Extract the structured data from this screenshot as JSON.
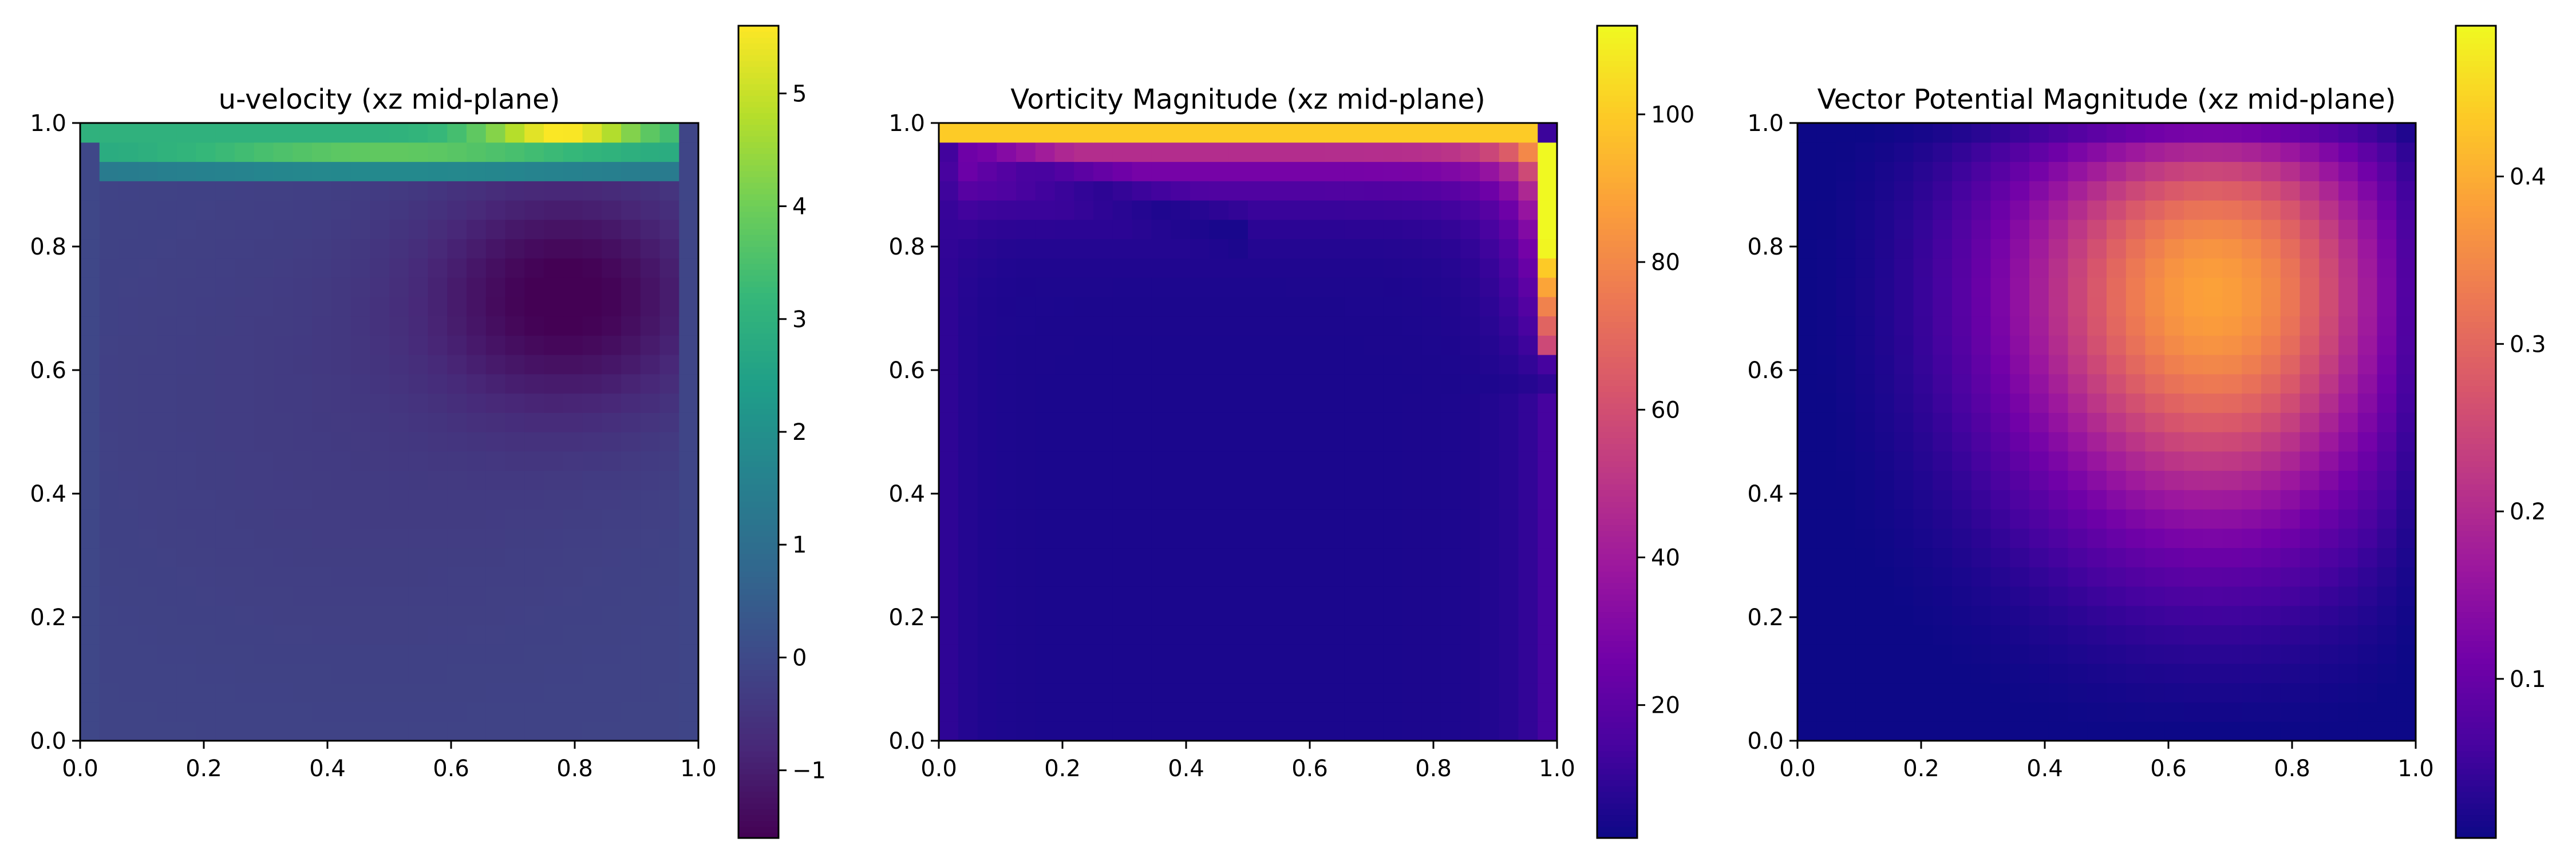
{
  "chart_data": [
    {
      "type": "heatmap",
      "title": "u-velocity (xz mid-plane)",
      "xlabel": "",
      "ylabel": "",
      "xlim": [
        0.0,
        1.0
      ],
      "ylim": [
        0.0,
        1.0
      ],
      "x_ticks": [
        "0.0",
        "0.2",
        "0.4",
        "0.6",
        "0.8",
        "1.0"
      ],
      "y_ticks": [
        "0.0",
        "0.2",
        "0.4",
        "0.6",
        "0.8",
        "1.0"
      ],
      "grid": [
        32,
        32
      ],
      "colormap": "viridis",
      "colorbar": {
        "range": [
          -1.6,
          5.6
        ],
        "ticks": [
          -1,
          0,
          1,
          2,
          3,
          4,
          5
        ],
        "labels": [
          "−1",
          "0",
          "1",
          "2",
          "3",
          "4",
          "5"
        ]
      },
      "field": {
        "description_values": "lid row peaks ~5.6 near x=0.8 (z=0.97); secondary band ~3 at z=0.94; broad negative vortex min ~-1.6 near (0.78, 0.72); lower region ~ -0.1"
      },
      "colors": {
        "low": "#440154",
        "mid": "#21918c",
        "high": "#fde725"
      }
    },
    {
      "type": "heatmap",
      "title": "Vorticity Magnitude (xz mid-plane)",
      "xlabel": "",
      "ylabel": "",
      "xlim": [
        0.0,
        1.0
      ],
      "ylim": [
        0.0,
        1.0
      ],
      "x_ticks": [
        "0.0",
        "0.2",
        "0.4",
        "0.6",
        "0.8",
        "1.0"
      ],
      "y_ticks": [
        "0.0",
        "0.2",
        "0.4",
        "0.6",
        "0.8",
        "1.0"
      ],
      "grid": [
        32,
        32
      ],
      "colormap": "plasma",
      "colorbar": {
        "range": [
          2,
          112
        ],
        "ticks": [
          20,
          40,
          60,
          80,
          100
        ],
        "labels": [
          "20",
          "40",
          "60",
          "80",
          "100"
        ]
      },
      "field": {
        "description_values": "top lid row ~100; right wall ~100 near top; near-wall band ~60; diagonal low-vorticity streak; interior ~5"
      },
      "colors": {
        "low": "#0d0887",
        "mid": "#cc4778",
        "high": "#f0f921"
      }
    },
    {
      "type": "heatmap",
      "title": "Vector Potential Magnitude (xz mid-plane)",
      "xlabel": "",
      "ylabel": "",
      "xlim": [
        0.0,
        1.0
      ],
      "ylim": [
        0.0,
        1.0
      ],
      "x_ticks": [
        "0.0",
        "0.2",
        "0.4",
        "0.6",
        "0.8",
        "1.0"
      ],
      "y_ticks": [
        "0.0",
        "0.2",
        "0.4",
        "0.6",
        "0.8",
        "1.0"
      ],
      "grid": [
        32,
        32
      ],
      "colormap": "plasma",
      "colorbar": {
        "range": [
          0.005,
          0.49
        ],
        "ticks": [
          0.1,
          0.2,
          0.3,
          0.4
        ],
        "labels": [
          "0.1",
          "0.2",
          "0.3",
          "0.4"
        ]
      },
      "field": {
        "description_values": "zero on walls; maximum ~0.49 near (0.72, 0.83); decays smoothly toward the bottom"
      },
      "colors": {
        "low": "#0d0887",
        "mid": "#cc4778",
        "high": "#f0f921"
      }
    }
  ]
}
